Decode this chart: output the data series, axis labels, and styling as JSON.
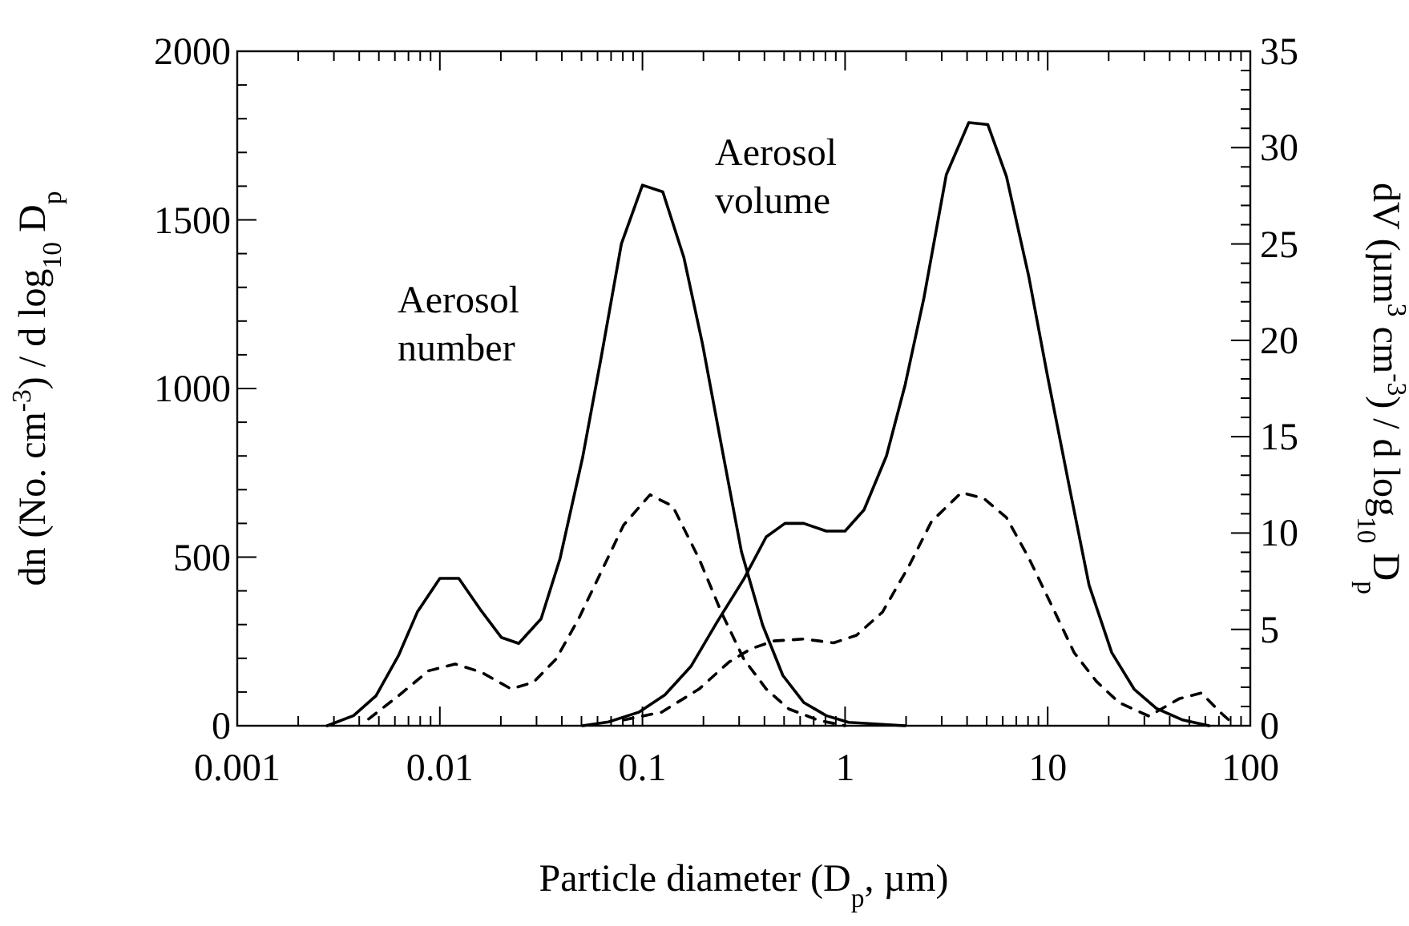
{
  "chart_data": {
    "type": "line",
    "xlabel": "Particle diameter (D$_{p}$, µm)",
    "ylabel": "dn (No. cm$^{-3}$) / d log$_{10}$ D$_{p}$",
    "y2label": "dV (µm$^{3}$ cm$^{-3}$) / d log$_{10}$ D$_{p}$",
    "log": "x",
    "xlim": [
      0.001,
      100
    ],
    "xticks": [
      0.001,
      0.01,
      0.1,
      1,
      10,
      100
    ],
    "ylim": [
      0,
      2000
    ],
    "yticks": [
      0,
      500,
      1000,
      1500,
      2000
    ],
    "y2lim": [
      0,
      35
    ],
    "y2ticks": [
      0,
      5,
      10,
      15,
      20,
      25,
      30,
      35
    ],
    "grid": false,
    "annotations": [
      "Aerosol\nnumber",
      "Aerosol\nvolume"
    ],
    "series": [
      {
        "color": "#000000",
        "line_style": "solid",
        "x": [
          0.00278,
          0.00375,
          0.00484,
          0.00625,
          0.00774,
          0.01,
          0.0124,
          0.016,
          0.0201,
          0.0245,
          0.0316,
          0.0392,
          0.0506,
          0.0625,
          0.0787,
          0.1,
          0.126,
          0.16,
          0.198,
          0.245,
          0.308,
          0.392,
          0.493,
          0.625,
          0.807,
          1.04,
          1.98
        ],
        "values": [
          0,
          30,
          89,
          208,
          337,
          437,
          437,
          341,
          262,
          244,
          317,
          496,
          794,
          1091,
          1429,
          1603,
          1583,
          1389,
          1131,
          833,
          516,
          298,
          149,
          69,
          30,
          10,
          0
        ]
      },
      {
        "color": "#000000",
        "line_style": "dashed",
        "x": [
          0.00445,
          0.00625,
          0.0088,
          0.0119,
          0.016,
          0.0225,
          0.029,
          0.0375,
          0.0484,
          0.0625,
          0.0807,
          0.109,
          0.141,
          0.19,
          0.245,
          0.316,
          0.408,
          0.527,
          0.741,
          1.0
        ],
        "values": [
          20,
          89,
          163,
          183,
          159,
          109,
          129,
          198,
          317,
          456,
          595,
          685,
          651,
          496,
          337,
          198,
          109,
          50,
          16,
          0
        ]
      },
      {
        "color": "#000000",
        "line_style": "solid",
        "axis": "y2",
        "x": [
          0.0506,
          0.068,
          0.0958,
          0.129,
          0.174,
          0.234,
          0.316,
          0.408,
          0.505,
          0.625,
          0.807,
          1.0,
          1.24,
          1.6,
          1.98,
          2.45,
          3.16,
          4.08,
          5.06,
          6.26,
          8.07,
          10,
          12.9,
          16.0,
          20.7,
          26.7,
          34.4,
          46.4,
          62.5
        ],
        "values": [
          0,
          0.2,
          0.7,
          1.6,
          3.1,
          5.4,
          7.6,
          9.8,
          10.5,
          10.5,
          10.1,
          10.1,
          11.2,
          14.0,
          17.7,
          22.2,
          28.6,
          31.3,
          31.2,
          28.5,
          23.3,
          18.1,
          12.2,
          7.3,
          3.8,
          1.9,
          0.9,
          0.3,
          0
        ]
      },
      {
        "color": "#000000",
        "line_style": "dashed",
        "axis": "y2",
        "x": [
          0.0807,
          0.124,
          0.19,
          0.267,
          0.344,
          0.445,
          0.625,
          0.879,
          1.14,
          1.53,
          2.07,
          2.67,
          3.75,
          4.84,
          6.26,
          8.07,
          10.4,
          13.5,
          17.4,
          22.5,
          31.6,
          44.5,
          57.4,
          71.1,
          84.3
        ],
        "values": [
          0.3,
          0.7,
          1.9,
          3.3,
          4.0,
          4.4,
          4.5,
          4.3,
          4.7,
          5.9,
          8.3,
          10.6,
          12.1,
          11.8,
          10.8,
          8.7,
          6.3,
          3.8,
          2.3,
          1.2,
          0.5,
          1.4,
          1.7,
          0.7,
          0
        ]
      }
    ]
  }
}
